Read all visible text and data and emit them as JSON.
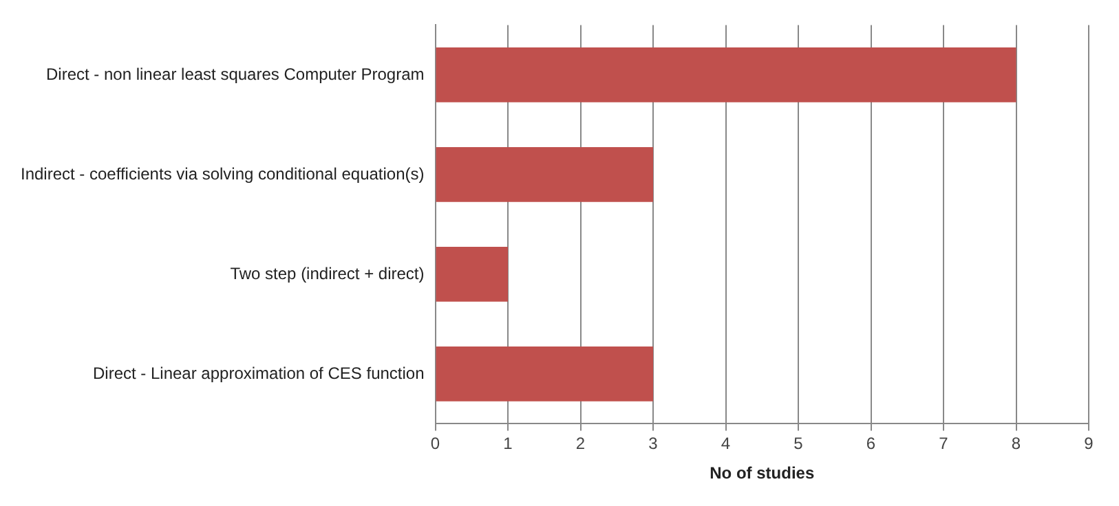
{
  "chart_data": {
    "type": "bar",
    "orientation": "horizontal",
    "xlabel": "No of studies",
    "categories": [
      "Direct - non linear least squares Computer Program",
      "Indirect - coefficients via solving conditional equation(s)",
      "Two step (indirect + direct)",
      "Direct - Linear approximation of CES function"
    ],
    "values": [
      8,
      3,
      1,
      3
    ],
    "color": "#c0504d",
    "xlim": [
      0,
      9
    ],
    "xticks": [
      0,
      1,
      2,
      3,
      4,
      5,
      6,
      7,
      8,
      9
    ],
    "grid": "x",
    "legend": false
  }
}
